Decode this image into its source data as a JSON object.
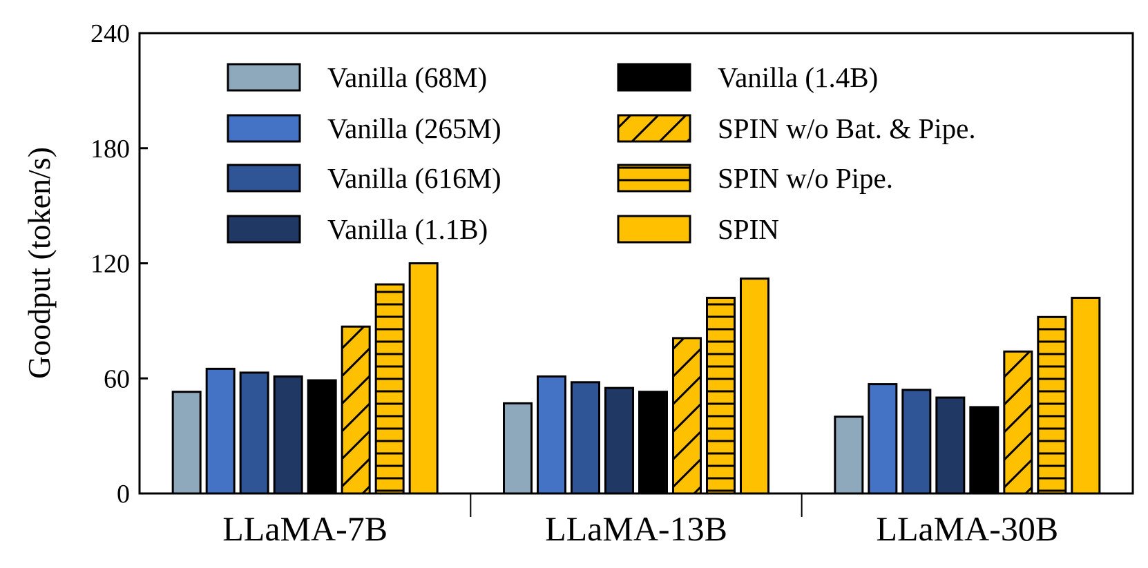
{
  "chart_data": {
    "type": "bar",
    "ylabel": "Goodput (token/s)",
    "ylim": [
      0,
      240
    ],
    "yticks": [
      0,
      60,
      120,
      180,
      240
    ],
    "categories": [
      "LLaMA-7B",
      "LLaMA-13B",
      "LLaMA-30B"
    ],
    "legend_position": "top",
    "grid": false,
    "series": [
      {
        "name": "Vanilla (68M)",
        "color": "#8FA9BC",
        "pattern": "none",
        "values": [
          53,
          47,
          40
        ]
      },
      {
        "name": "Vanilla (265M)",
        "color": "#4472C4",
        "pattern": "none",
        "values": [
          65,
          61,
          57
        ]
      },
      {
        "name": "Vanilla (616M)",
        "color": "#2F5597",
        "pattern": "none",
        "values": [
          63,
          58,
          54
        ]
      },
      {
        "name": "Vanilla (1.1B)",
        "color": "#203864",
        "pattern": "none",
        "values": [
          61,
          55,
          50
        ]
      },
      {
        "name": "Vanilla (1.4B)",
        "color": "#000000",
        "pattern": "none",
        "values": [
          59,
          53,
          45
        ]
      },
      {
        "name": "SPIN w/o Bat. & Pipe.",
        "color": "#FFC000",
        "pattern": "diagonal",
        "values": [
          87,
          81,
          74
        ]
      },
      {
        "name": "SPIN w/o Pipe.",
        "color": "#FFC000",
        "pattern": "horizontal",
        "values": [
          109,
          102,
          92
        ]
      },
      {
        "name": "SPIN",
        "color": "#FFC000",
        "pattern": "none",
        "values": [
          120,
          112,
          102
        ]
      }
    ]
  }
}
